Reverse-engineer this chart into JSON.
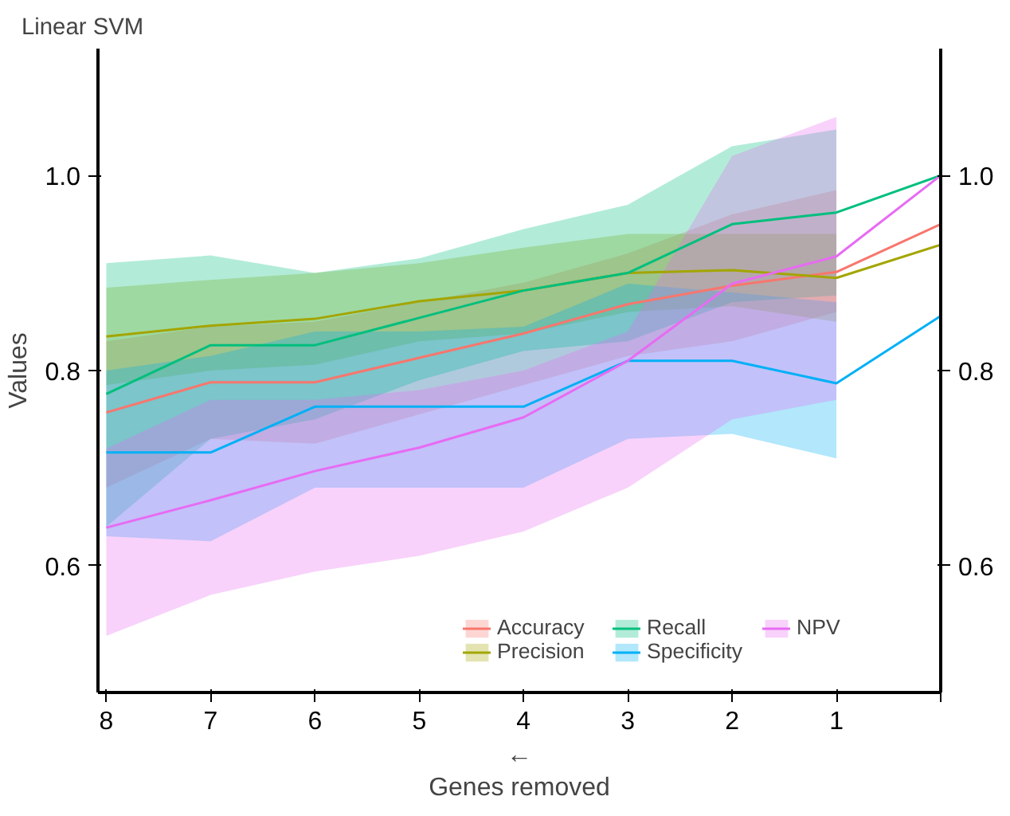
{
  "chart_data": {
    "type": "line",
    "title": "Linear SVM",
    "xlabel": "←\nGenes removed",
    "ylabel": "Values",
    "categories": [
      "8",
      "7",
      "6",
      "5",
      "4",
      "3",
      "2",
      "1",
      null
    ],
    "series": [
      {
        "name": "Accuracy",
        "color": "#f8766d",
        "values": [
          0.757,
          0.788,
          0.788,
          0.813,
          0.838,
          0.868,
          0.887,
          0.901,
          0.95
        ],
        "lower": [
          0.68,
          0.73,
          0.725,
          0.755,
          0.785,
          0.815,
          0.83,
          0.86,
          null
        ],
        "upper": [
          0.83,
          0.845,
          0.85,
          0.87,
          0.89,
          0.92,
          0.96,
          0.985,
          null
        ]
      },
      {
        "name": "Precision",
        "color": "#a3a500",
        "values": [
          0.835,
          0.846,
          0.853,
          0.871,
          0.882,
          0.9,
          0.903,
          0.895,
          0.929
        ],
        "lower": [
          0.785,
          0.8,
          0.806,
          0.83,
          0.838,
          0.86,
          0.866,
          0.85,
          null
        ],
        "upper": [
          0.885,
          0.893,
          0.9,
          0.91,
          0.926,
          0.94,
          0.94,
          0.94,
          null
        ]
      },
      {
        "name": "Recall",
        "color": "#00bf7d",
        "values": [
          0.776,
          0.826,
          0.826,
          0.854,
          0.882,
          0.9,
          0.95,
          0.962,
          1.0
        ],
        "lower": [
          0.64,
          0.73,
          0.75,
          0.79,
          0.82,
          0.83,
          0.87,
          0.877,
          null
        ],
        "upper": [
          0.91,
          0.918,
          0.9,
          0.915,
          0.945,
          0.97,
          1.03,
          1.047,
          null
        ]
      },
      {
        "name": "Specificity",
        "color": "#00b0f6",
        "values": [
          0.716,
          0.716,
          0.763,
          0.763,
          0.763,
          0.81,
          0.81,
          0.787,
          0.856
        ],
        "lower": [
          0.63,
          0.625,
          0.68,
          0.68,
          0.68,
          0.73,
          0.735,
          0.71,
          null
        ],
        "upper": [
          0.8,
          0.815,
          0.84,
          0.84,
          0.845,
          0.889,
          0.88,
          0.87,
          null
        ]
      },
      {
        "name": "NPV",
        "color": "#e76bf3",
        "values": [
          0.639,
          0.667,
          0.697,
          0.721,
          0.752,
          0.81,
          0.889,
          0.917,
          1.0
        ],
        "lower": [
          0.528,
          0.57,
          0.594,
          0.61,
          0.635,
          0.68,
          0.75,
          0.77,
          null
        ],
        "upper": [
          0.72,
          0.77,
          0.77,
          0.78,
          0.8,
          0.84,
          1.02,
          1.06,
          null
        ]
      }
    ],
    "ylim": [
      0.47,
      1.13
    ],
    "yticks": [
      0.6,
      0.8,
      {
        "value": 1,
        "label": "1.0"
      }
    ],
    "y2lim": [
      0.47,
      1.13
    ],
    "y2ticks": [
      0.6,
      0.8,
      {
        "value": 1,
        "label": "1.0"
      }
    ],
    "grid": false,
    "legend": "bottom right",
    "marker": "none",
    "line_style": "solid"
  }
}
